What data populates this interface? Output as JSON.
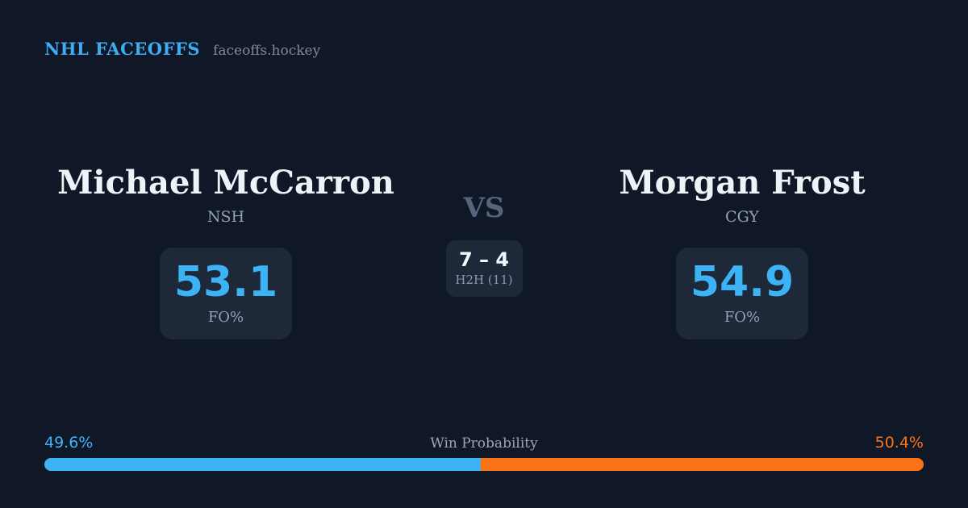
{
  "header": {
    "brand": "NHL FACEOFFS",
    "domain": "faceoffs.hockey"
  },
  "matchup": {
    "vs_label": "VS",
    "h2h": {
      "score": "7 – 4",
      "label": "H2H (11)"
    },
    "players": [
      {
        "name": "Michael McCarron",
        "team": "NSH",
        "fo_value": "53.1",
        "fo_label": "FO%"
      },
      {
        "name": "Morgan Frost",
        "team": "CGY",
        "fo_value": "54.9",
        "fo_label": "FO%"
      }
    ]
  },
  "win_probability": {
    "title": "Win Probability",
    "left": {
      "label": "49.6%",
      "value": 49.6,
      "color": "#3bb3f4"
    },
    "right": {
      "label": "50.4%",
      "value": 50.4,
      "color": "#f97316"
    }
  },
  "colors": {
    "background": "#101828",
    "card": "#1d2939",
    "accent_blue": "#3bb3f4",
    "accent_orange": "#f97316",
    "text_primary": "#eef3f8",
    "text_muted": "#93a1b5"
  }
}
